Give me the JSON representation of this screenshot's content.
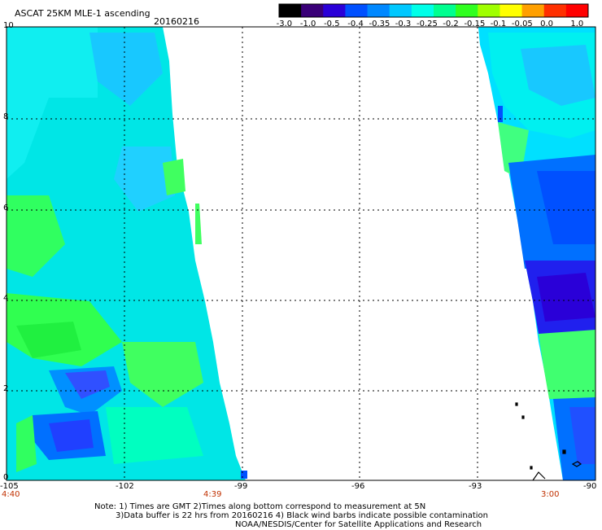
{
  "title": "ASCAT 25KM MLE-1 ascending",
  "date": "20160216",
  "colorbar": {
    "labels": [
      "-3.0",
      "-1.0",
      "-0.5",
      "-0.4",
      "-0.35",
      "-0.3",
      "-0.25",
      "-0.2",
      "-0.15",
      "-0.1",
      "-0.05",
      "0.0",
      "1.0"
    ],
    "colors": [
      "#000000",
      "#3a0078",
      "#2a00d8",
      "#0050ff",
      "#0088ff",
      "#00c8ff",
      "#00ffe8",
      "#00ff90",
      "#30ff20",
      "#a0ff00",
      "#ffff00",
      "#ffa000",
      "#ff3000",
      "#ff0000"
    ]
  },
  "y_axis": {
    "labels": [
      "10",
      "8",
      "6",
      "4",
      "2",
      "0"
    ]
  },
  "x_axis": {
    "labels": [
      "-105",
      "-102",
      "-99",
      "-96",
      "-93",
      "-90"
    ]
  },
  "times": {
    "t1": "4:40",
    "t2": "4:39",
    "t3": "3:00"
  },
  "notes": {
    "line1": "Note: 1) Times are GMT 2)Times along bottom correspond to measurement at 5N",
    "line2": "3)Data buffer is 22 hrs from 20160216 4) Black wind barbs indicate possible contamination",
    "line3": "NOAA/NESDIS/Center for Satellite Applications and Research"
  }
}
